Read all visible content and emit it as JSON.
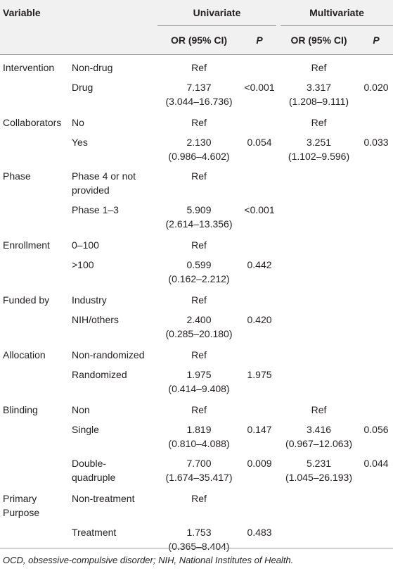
{
  "headers": {
    "variable": "Variable",
    "univariate": "Univariate",
    "multivariate": "Multivariate",
    "or_ci": "OR (95% CI)",
    "p": "P"
  },
  "rows": [
    {
      "variable": "Intervention",
      "level": [
        "Non-drug"
      ],
      "uni_or": [
        "Ref"
      ],
      "uni_p": "",
      "multi_or": [
        "Ref"
      ],
      "multi_p": ""
    },
    {
      "variable": "",
      "level": [
        "Drug"
      ],
      "uni_or": [
        "7.137",
        "(3.044–16.736)"
      ],
      "uni_p": "<0.001",
      "multi_or": [
        "3.317",
        "(1.208–9.111)"
      ],
      "multi_p": "0.020"
    },
    {
      "variable": "Collaborators",
      "level": [
        "No"
      ],
      "uni_or": [
        "Ref"
      ],
      "uni_p": "",
      "multi_or": [
        "Ref"
      ],
      "multi_p": ""
    },
    {
      "variable": "",
      "level": [
        "Yes"
      ],
      "uni_or": [
        "2.130",
        "(0.986–4.602)"
      ],
      "uni_p": "0.054",
      "multi_or": [
        "3.251",
        "(1.102–9.596)"
      ],
      "multi_p": "0.033"
    },
    {
      "variable": "Phase",
      "level": [
        "Phase 4 or not",
        "provided"
      ],
      "uni_or": [
        "Ref"
      ],
      "uni_p": "",
      "multi_or": [],
      "multi_p": ""
    },
    {
      "variable": "",
      "level": [
        "Phase 1–3"
      ],
      "uni_or": [
        "5.909",
        "(2.614–13.356)"
      ],
      "uni_p": "<0.001",
      "multi_or": [],
      "multi_p": ""
    },
    {
      "variable": "Enrollment",
      "level": [
        "0–100"
      ],
      "uni_or": [
        "Ref"
      ],
      "uni_p": "",
      "multi_or": [],
      "multi_p": ""
    },
    {
      "variable": "",
      "level": [
        ">100"
      ],
      "uni_or": [
        "0.599",
        "(0.162–2.212)"
      ],
      "uni_p": "0.442",
      "multi_or": [],
      "multi_p": ""
    },
    {
      "variable": "Funded by",
      "level": [
        "Industry"
      ],
      "uni_or": [
        "Ref"
      ],
      "uni_p": "",
      "multi_or": [],
      "multi_p": ""
    },
    {
      "variable": "",
      "level": [
        "NIH/others"
      ],
      "uni_or": [
        "2.400",
        "(0.285–20.180)"
      ],
      "uni_p": "0.420",
      "multi_or": [],
      "multi_p": ""
    },
    {
      "variable": "Allocation",
      "level": [
        "Non-randomized"
      ],
      "uni_or": [
        "Ref"
      ],
      "uni_p": "",
      "multi_or": [],
      "multi_p": ""
    },
    {
      "variable": "",
      "level": [
        "Randomized"
      ],
      "uni_or": [
        "1.975",
        "(0.414–9.408)"
      ],
      "uni_p": "1.975",
      "multi_or": [],
      "multi_p": ""
    },
    {
      "variable": "Blinding",
      "level": [
        "Non"
      ],
      "uni_or": [
        "Ref"
      ],
      "uni_p": "",
      "multi_or": [
        "Ref"
      ],
      "multi_p": ""
    },
    {
      "variable": "",
      "level": [
        "Single"
      ],
      "uni_or": [
        "1.819",
        "(0.810–4.088)"
      ],
      "uni_p": "0.147",
      "multi_or": [
        "3.416",
        "(0.967–12.063)"
      ],
      "multi_p": "0.056"
    },
    {
      "variable": "",
      "level": [
        "Double-",
        "quadruple"
      ],
      "uni_or": [
        "7.700",
        "(1.674–35.417)"
      ],
      "uni_p": "0.009",
      "multi_or": [
        "5.231",
        "(1.045–26.193)"
      ],
      "multi_p": "0.044"
    },
    {
      "variable": "Primary Purpose",
      "level": [
        "Non-treatment"
      ],
      "uni_or": [
        "Ref"
      ],
      "uni_p": "",
      "multi_or": [],
      "multi_p": ""
    },
    {
      "variable": "",
      "level": [
        "Treatment"
      ],
      "uni_or": [
        "1.753",
        "(0.365–8.404)"
      ],
      "uni_p": "0.483",
      "multi_or": [],
      "multi_p": ""
    }
  ],
  "footnote": "OCD, obsessive-compulsive disorder; NIH, National Institutes of Health."
}
